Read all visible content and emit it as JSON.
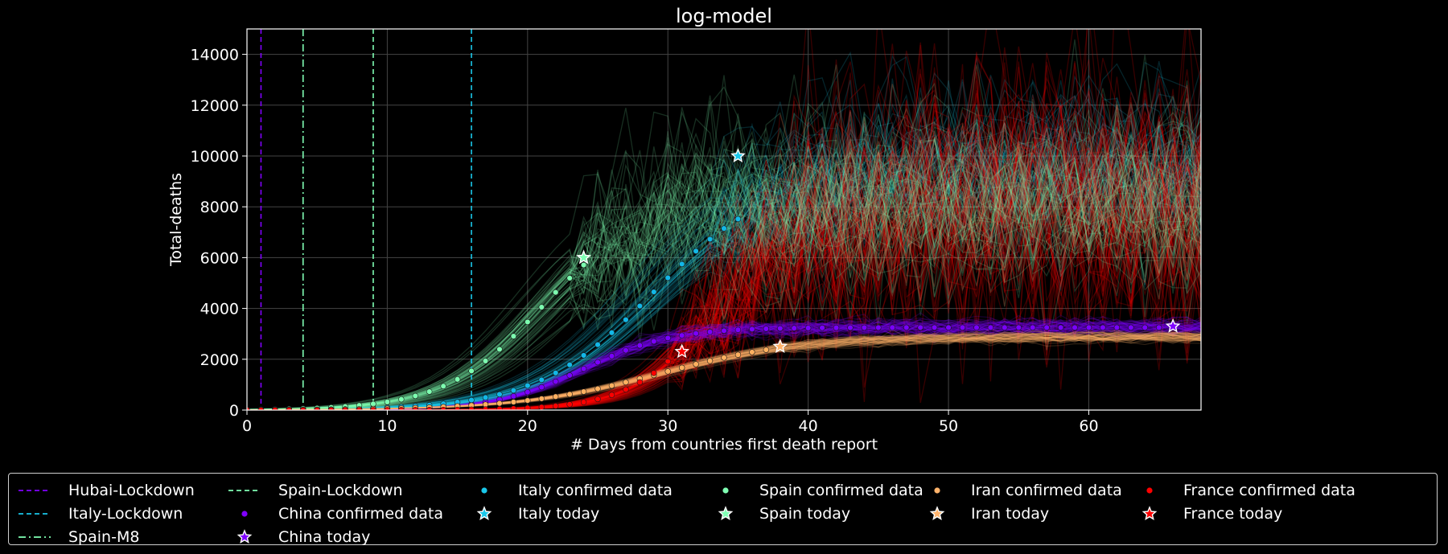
{
  "chart_data": {
    "type": "line",
    "title": "log-model",
    "xlabel": "# Days from countries first death report",
    "ylabel": "Total-deaths",
    "xlim": [
      0,
      68
    ],
    "ylim": [
      0,
      15000
    ],
    "xticks": [
      0,
      10,
      20,
      30,
      40,
      50,
      60
    ],
    "yticks": [
      0,
      2000,
      4000,
      6000,
      8000,
      10000,
      12000,
      14000
    ],
    "grid": true,
    "background": "#000000",
    "legend_placement": "below",
    "vlines": [
      {
        "name": "Hubai-Lockdown",
        "x": 1,
        "style": "dashed",
        "color": "#8000ff"
      },
      {
        "name": "Spain-M8",
        "x": 4,
        "style": "dashdot",
        "color": "#80ffb4"
      },
      {
        "name": "Spain-Lockdown",
        "x": 9,
        "style": "dashed",
        "color": "#80ffb4"
      },
      {
        "name": "Italy-Lockdown",
        "x": 16,
        "style": "dashed",
        "color": "#1ac7e9"
      }
    ],
    "series": [
      {
        "name": "China confirmed data",
        "today_name": "China today",
        "color": "#8000ff",
        "scatter_color": "#7a00ff",
        "K": 3250,
        "r": 0.32,
        "t0": 24,
        "obs_end": 66,
        "cloud_end": 68,
        "noise": 0.04,
        "noise_days": [
          0,
          68
        ],
        "today": {
          "x": 66,
          "y": 3300
        }
      },
      {
        "name": "Italy confirmed data",
        "today_name": "Italy today",
        "color": "#1ac7e9",
        "scatter_color": "#12b8e8",
        "K": 9300,
        "r": 0.24,
        "t0": 29,
        "obs_end": 35,
        "cloud_end": 68,
        "noise": 0.12,
        "noise_days": [
          34,
          68
        ],
        "today": {
          "x": 35,
          "y": 10000
        }
      },
      {
        "name": "Spain confirmed data",
        "today_name": "Spain today",
        "color": "#80ffb4",
        "scatter_color": "#7dffb0",
        "K": 8100,
        "r": 0.29,
        "t0": 21,
        "obs_end": 24,
        "cloud_end": 68,
        "noise": 0.18,
        "noise_days": [
          24,
          68
        ],
        "today": {
          "x": 24,
          "y": 6000
        }
      },
      {
        "name": "Iran confirmed data",
        "today_name": "Iran today",
        "color": "#ffb36b",
        "scatter_color": "#ffb060",
        "K": 2900,
        "r": 0.2,
        "t0": 29.5,
        "obs_end": 38,
        "cloud_end": 68,
        "noise": 0.025,
        "noise_days": [
          38,
          68
        ],
        "today": {
          "x": 38,
          "y": 2500
        }
      },
      {
        "name": "France confirmed data",
        "today_name": "France today",
        "color": "#ff0000",
        "scatter_color": "#ff0000",
        "K": 8200,
        "r": 0.34,
        "t0": 33.5,
        "obs_end": 31,
        "cloud_end": 68,
        "noise": 0.3,
        "noise_days": [
          31,
          68
        ],
        "today": {
          "x": 31,
          "y": 2300
        }
      }
    ]
  },
  "legend": [
    {
      "label": "Hubai-Lockdown",
      "kind": "dashed",
      "color": "#8000ff"
    },
    {
      "label": "Italy-Lockdown",
      "kind": "dashed",
      "color": "#1ac7e9"
    },
    {
      "label": "Spain-M8",
      "kind": "dashdot",
      "color": "#80ffb4"
    },
    {
      "label": "Spain-Lockdown",
      "kind": "dashed",
      "color": "#80ffb4"
    },
    {
      "label": "China confirmed data",
      "kind": "dot",
      "color": "#8000ff"
    },
    {
      "label": "China today",
      "kind": "star",
      "color": "#8000ff"
    },
    {
      "label": "Italy confirmed data",
      "kind": "dot",
      "color": "#1ac7e9"
    },
    {
      "label": "Italy today",
      "kind": "star",
      "color": "#1ac7e9"
    },
    {
      "label": "Spain confirmed data",
      "kind": "dot",
      "color": "#80ffb4"
    },
    {
      "label": "Spain today",
      "kind": "star",
      "color": "#80ffb4"
    },
    {
      "label": "Iran confirmed data",
      "kind": "dot",
      "color": "#ffb36b"
    },
    {
      "label": "Iran today",
      "kind": "star",
      "color": "#ffb36b"
    },
    {
      "label": "France confirmed data",
      "kind": "dot",
      "color": "#ff0000"
    },
    {
      "label": "France today",
      "kind": "star",
      "color": "#ff0000"
    }
  ]
}
